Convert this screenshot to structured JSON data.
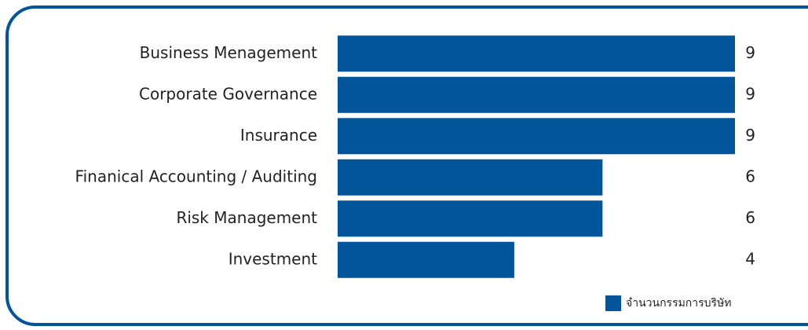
{
  "chart_data": {
    "type": "bar",
    "orientation": "horizontal",
    "categories": [
      "Business Menagement",
      "Corporate Governance",
      "Insurance",
      "Finanical Accounting / Auditing",
      "Risk Management",
      "Investment"
    ],
    "series": [
      {
        "name": "จำนวนกรรมการบริษัท",
        "color": "#02559a",
        "values": [
          9,
          9,
          9,
          6,
          6,
          4
        ]
      }
    ],
    "legend": "bottom-right"
  }
}
